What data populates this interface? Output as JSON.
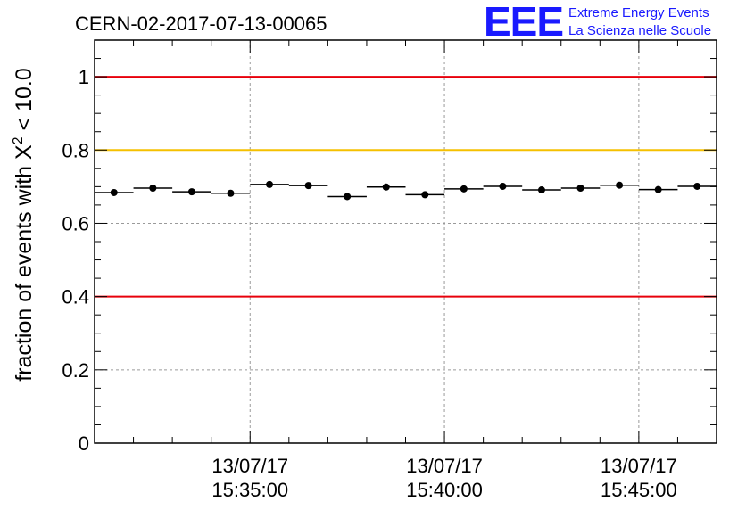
{
  "run_title": "CERN-02-2017-07-13-00065",
  "logo": {
    "letters": "EEE",
    "line1": "Extreme Energy Events",
    "line2": "La Scienza nelle Scuole",
    "color": "#1a1aff"
  },
  "chart_data": {
    "type": "scatter",
    "ylabel_prefix": "fraction of events with X",
    "ylabel_sup": "2",
    "ylabel_suffix": " < 10.0",
    "ylim": [
      0,
      1.1
    ],
    "yticks": [
      {
        "value": 0,
        "label": "0"
      },
      {
        "value": 0.2,
        "label": "0.2"
      },
      {
        "value": 0.4,
        "label": "0.4"
      },
      {
        "value": 0.6,
        "label": "0.6"
      },
      {
        "value": 0.8,
        "label": "0.8"
      },
      {
        "value": 1.0,
        "label": "1"
      }
    ],
    "xlim": [
      "15:31:00",
      "15:47:00"
    ],
    "xticks": [
      {
        "time": "15:35:00",
        "date": "13/07/17",
        "label": "15:35:00"
      },
      {
        "time": "15:40:00",
        "date": "13/07/17",
        "label": "15:40:00"
      },
      {
        "time": "15:45:00",
        "date": "13/07/17",
        "label": "15:45:00"
      }
    ],
    "grid": true,
    "reference_lines": [
      {
        "value": 1.0,
        "color": "#e8000b"
      },
      {
        "value": 0.8,
        "color": "#f5c000"
      },
      {
        "value": 0.4,
        "color": "#e8000b"
      }
    ],
    "points": [
      {
        "t": "15:31:30",
        "y": 0.684
      },
      {
        "t": "15:32:30",
        "y": 0.696
      },
      {
        "t": "15:33:30",
        "y": 0.686
      },
      {
        "t": "15:34:30",
        "y": 0.682
      },
      {
        "t": "15:35:30",
        "y": 0.706
      },
      {
        "t": "15:36:30",
        "y": 0.703
      },
      {
        "t": "15:37:30",
        "y": 0.673
      },
      {
        "t": "15:38:30",
        "y": 0.699
      },
      {
        "t": "15:39:30",
        "y": 0.678
      },
      {
        "t": "15:40:30",
        "y": 0.694
      },
      {
        "t": "15:41:30",
        "y": 0.701
      },
      {
        "t": "15:42:30",
        "y": 0.691
      },
      {
        "t": "15:43:30",
        "y": 0.696
      },
      {
        "t": "15:44:30",
        "y": 0.704
      },
      {
        "t": "15:45:30",
        "y": 0.692
      },
      {
        "t": "15:46:30",
        "y": 0.701
      }
    ],
    "bin_width_minutes": 1
  }
}
